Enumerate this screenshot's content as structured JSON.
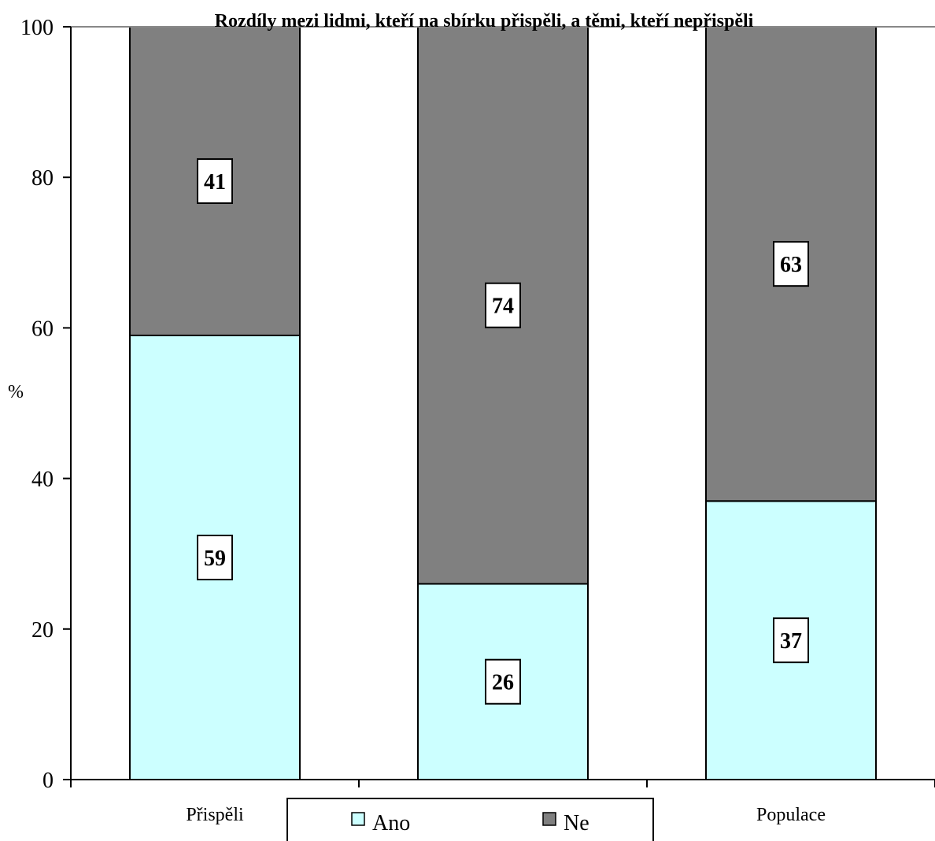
{
  "chart_data": {
    "type": "bar",
    "stacked": true,
    "title": "Rozdíly mezi lidmi, kteří na sbírku přispěli, a těmi, kteří nepřispěli",
    "ylabel": "%",
    "xlabel": "",
    "ylim": [
      0,
      100
    ],
    "yticks": [
      0,
      20,
      40,
      60,
      80,
      100
    ],
    "categories": [
      "Přispěli",
      "",
      "Populace"
    ],
    "series": [
      {
        "name": "Ano",
        "color": "#ccffff",
        "values": [
          59,
          26,
          37
        ]
      },
      {
        "name": "Ne",
        "color": "#808080",
        "values": [
          41,
          74,
          63
        ]
      }
    ],
    "grid": false,
    "legend_position": "bottom"
  }
}
